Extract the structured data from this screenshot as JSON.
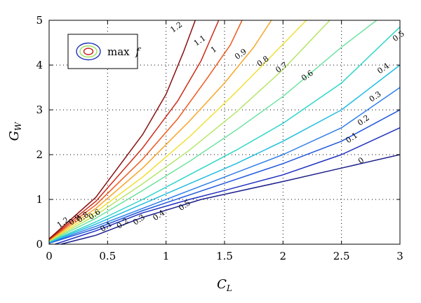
{
  "chart_data": {
    "type": "contour",
    "xlabel": "C",
    "xlabel_sub": "L",
    "ylabel": "G",
    "ylabel_sub": "W",
    "xlim": [
      0,
      3
    ],
    "ylim": [
      0,
      5
    ],
    "xticks": [
      0,
      0.5,
      1,
      1.5,
      2,
      2.5,
      3
    ],
    "xtick_labels": [
      "0",
      "0.5",
      "1",
      "1.5",
      "2",
      "2.5",
      "3"
    ],
    "yticks": [
      0,
      1,
      2,
      3,
      4,
      5
    ],
    "ytick_labels": [
      "0",
      "1",
      "2",
      "3",
      "4",
      "5"
    ],
    "grid": true,
    "legend": {
      "text": "max",
      "symbol": "f",
      "placement": "top-left"
    },
    "levels": [
      {
        "label": "0",
        "value": 0,
        "color": "#1c1f8a",
        "points": [
          [
            0.1,
            0
          ],
          [
            0.4,
            0.2
          ],
          [
            0.8,
            0.6
          ],
          [
            1.3,
            1.0
          ],
          [
            2.0,
            1.4
          ],
          [
            2.5,
            1.7
          ],
          [
            3.0,
            2.0
          ]
        ],
        "label_at": [
          2.68,
          1.82
        ]
      },
      {
        "label": "0.1",
        "value": 0.1,
        "color": "#1f2fbd",
        "points": [
          [
            0.05,
            0
          ],
          [
            0.4,
            0.3
          ],
          [
            0.8,
            0.7
          ],
          [
            1.2,
            1.0
          ],
          [
            1.5,
            1.2
          ],
          [
            2.0,
            1.55
          ],
          [
            2.5,
            2.0
          ],
          [
            3.0,
            2.6
          ]
        ],
        "label_at": [
          2.6,
          2.33
        ]
      },
      {
        "label": "0.2",
        "value": 0.2,
        "color": "#1f55dc",
        "points": [
          [
            0,
            0.02
          ],
          [
            0.4,
            0.35
          ],
          [
            0.8,
            0.75
          ],
          [
            1.2,
            1.1
          ],
          [
            1.6,
            1.45
          ],
          [
            2.0,
            1.8
          ],
          [
            2.5,
            2.3
          ],
          [
            3.0,
            3.0
          ]
        ],
        "label_at": [
          2.7,
          2.72
        ]
      },
      {
        "label": "0.3",
        "value": 0.3,
        "color": "#2e7fe8",
        "points": [
          [
            0,
            0.03
          ],
          [
            0.4,
            0.4
          ],
          [
            0.8,
            0.8
          ],
          [
            1.2,
            1.2
          ],
          [
            1.6,
            1.6
          ],
          [
            2.0,
            2.0
          ],
          [
            2.5,
            2.6
          ],
          [
            3.0,
            3.5
          ]
        ],
        "label_at": [
          2.8,
          3.25
        ]
      },
      {
        "label": "0.4",
        "value": 0.4,
        "color": "#22bde0",
        "points": [
          [
            0,
            0.04
          ],
          [
            0.4,
            0.45
          ],
          [
            0.8,
            0.9
          ],
          [
            1.2,
            1.35
          ],
          [
            1.6,
            1.8
          ],
          [
            2.0,
            2.3
          ],
          [
            2.5,
            3.0
          ],
          [
            3.0,
            4.0
          ]
        ],
        "label_at": [
          2.87,
          3.88
        ]
      },
      {
        "label": "0.5",
        "value": 0.5,
        "color": "#2fd5c9",
        "points": [
          [
            0,
            0.05
          ],
          [
            0.4,
            0.5
          ],
          [
            0.8,
            1.0
          ],
          [
            1.2,
            1.55
          ],
          [
            1.6,
            2.1
          ],
          [
            2.0,
            2.7
          ],
          [
            2.5,
            3.6
          ],
          [
            2.9,
            4.6
          ],
          [
            3.0,
            4.85
          ]
        ],
        "label_at": [
          3.0,
          4.6
        ]
      },
      {
        "label": "0.6",
        "value": 0.6,
        "color": "#6ee3a0",
        "points": [
          [
            0,
            0.06
          ],
          [
            0.4,
            0.58
          ],
          [
            0.8,
            1.2
          ],
          [
            1.2,
            1.85
          ],
          [
            1.6,
            2.55
          ],
          [
            2.0,
            3.3
          ],
          [
            2.5,
            4.4
          ],
          [
            2.8,
            5.0
          ]
        ],
        "label_at": [
          2.22,
          3.72
        ]
      },
      {
        "label": "0.7",
        "value": 0.7,
        "color": "#b5e66a",
        "points": [
          [
            0,
            0.07
          ],
          [
            0.4,
            0.65
          ],
          [
            0.8,
            1.35
          ],
          [
            1.2,
            2.1
          ],
          [
            1.6,
            2.95
          ],
          [
            2.0,
            3.9
          ],
          [
            2.2,
            4.45
          ],
          [
            2.4,
            5.0
          ]
        ],
        "label_at": [
          2.0,
          3.9
        ]
      },
      {
        "label": "0.8",
        "value": 0.8,
        "color": "#f0e03a",
        "points": [
          [
            0,
            0.08
          ],
          [
            0.4,
            0.72
          ],
          [
            0.8,
            1.5
          ],
          [
            1.2,
            2.4
          ],
          [
            1.6,
            3.4
          ],
          [
            1.9,
            4.2
          ],
          [
            2.2,
            5.0
          ]
        ],
        "label_at": [
          1.84,
          4.04
        ]
      },
      {
        "label": "0.9",
        "value": 0.9,
        "color": "#f7a528",
        "points": [
          [
            0,
            0.09
          ],
          [
            0.4,
            0.8
          ],
          [
            0.8,
            1.7
          ],
          [
            1.2,
            2.75
          ],
          [
            1.5,
            3.6
          ],
          [
            1.75,
            4.4
          ],
          [
            1.9,
            5.0
          ]
        ],
        "label_at": [
          1.65,
          4.2
        ]
      },
      {
        "label": "1",
        "value": 1.0,
        "color": "#ee5a1e",
        "points": [
          [
            0,
            0.1
          ],
          [
            0.4,
            0.88
          ],
          [
            0.8,
            1.9
          ],
          [
            1.1,
            2.8
          ],
          [
            1.35,
            3.7
          ],
          [
            1.55,
            4.45
          ],
          [
            1.65,
            5.0
          ]
        ],
        "label_at": [
          1.42,
          4.3
        ]
      },
      {
        "label": "1.1",
        "value": 1.1,
        "color": "#cc2b1a",
        "points": [
          [
            0,
            0.11
          ],
          [
            0.4,
            0.96
          ],
          [
            0.8,
            2.15
          ],
          [
            1.1,
            3.2
          ],
          [
            1.3,
            4.1
          ],
          [
            1.45,
            5.0
          ]
        ],
        "label_at": [
          1.3,
          4.5
        ]
      },
      {
        "label": "1.2",
        "value": 1.2,
        "color": "#8a1010",
        "points": [
          [
            0,
            0.12
          ],
          [
            0.4,
            1.05
          ],
          [
            0.8,
            2.45
          ],
          [
            1.0,
            3.35
          ],
          [
            1.15,
            4.3
          ],
          [
            1.25,
            5.0
          ]
        ],
        "label_at": [
          1.1,
          4.8
        ]
      }
    ],
    "small_labels": [
      {
        "text": "0.1",
        "at": [
          0.5,
          0.35
        ]
      },
      {
        "text": "0.2",
        "at": [
          0.64,
          0.42
        ]
      },
      {
        "text": "0.3",
        "at": [
          0.78,
          0.5
        ]
      },
      {
        "text": "0.4",
        "at": [
          0.95,
          0.6
        ]
      },
      {
        "text": "0.5",
        "at": [
          1.17,
          0.82
        ]
      },
      {
        "text": "0.6",
        "at": [
          0.4,
          0.62
        ]
      },
      {
        "text": "0.8",
        "at": [
          0.3,
          0.56
        ]
      },
      {
        "text": "0.9",
        "at": [
          0.23,
          0.5
        ]
      },
      {
        "text": "1.2",
        "at": [
          0.13,
          0.44
        ]
      }
    ]
  }
}
